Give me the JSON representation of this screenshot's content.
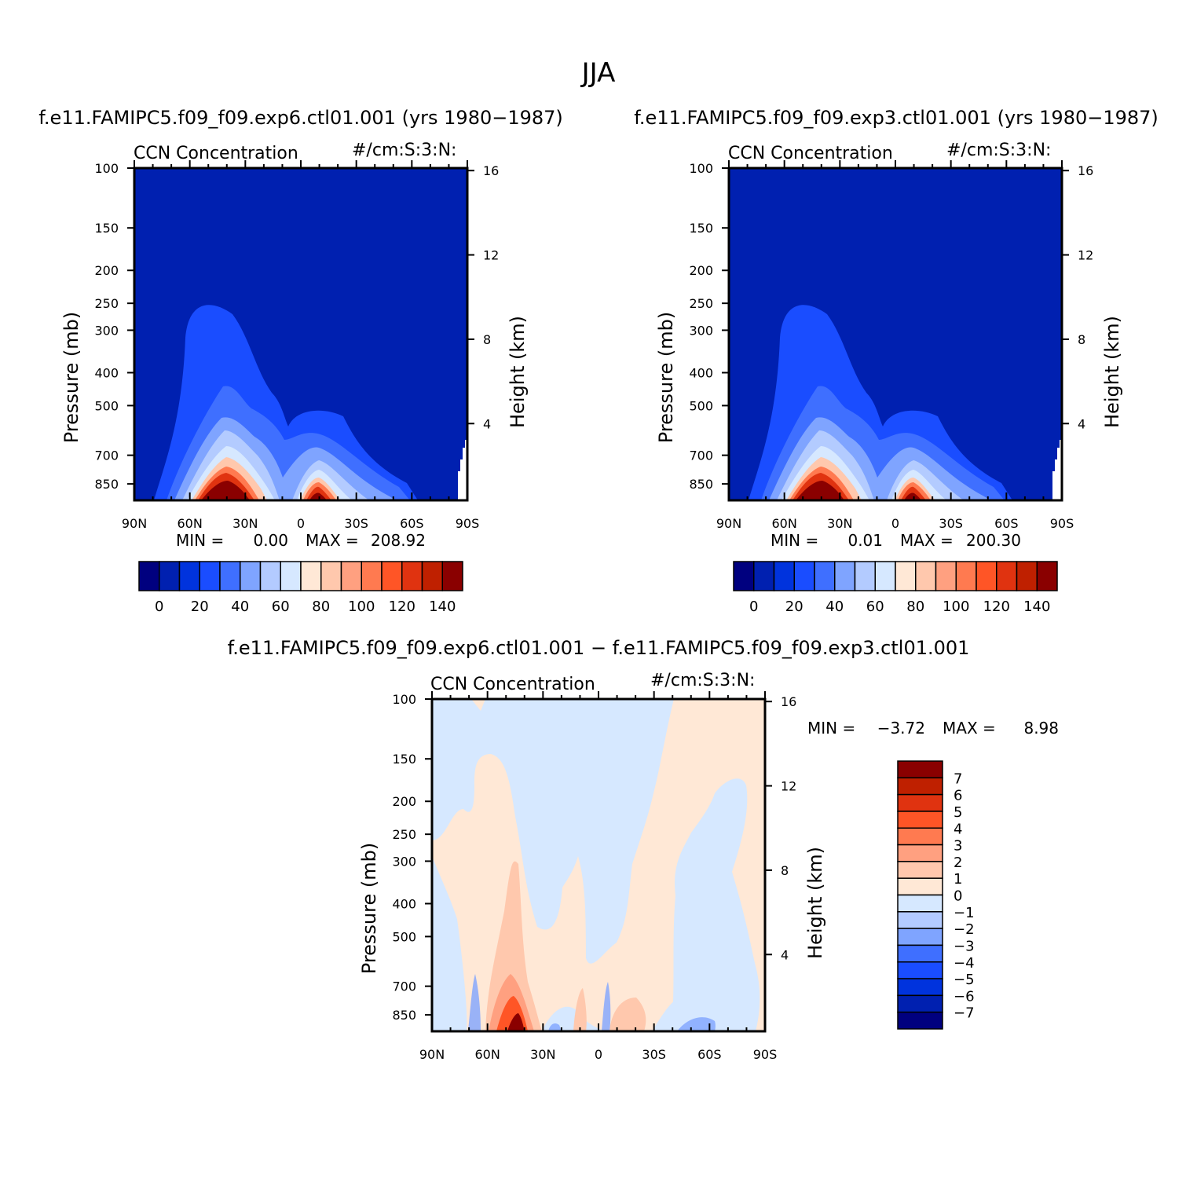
{
  "figure_title": "JJA",
  "panels": [
    {
      "id": "ctl6",
      "run_title": "f.e11.FAMIPC5.f09_f09.exp6.ctl01.001 (yrs 1980−1987)",
      "variable": "CCN Concentration",
      "units": "#/cm:S:3:N:",
      "min_label": "MIN =",
      "min_value": "0.00",
      "max_label": "MAX =",
      "max_value": "208.92"
    },
    {
      "id": "ctl3",
      "run_title": "f.e11.FAMIPC5.f09_f09.exp3.ctl01.001 (yrs 1980−1987)",
      "variable": "CCN Concentration",
      "units": "#/cm:S:3:N:",
      "min_label": "MIN =",
      "min_value": "0.01",
      "max_label": "MAX =",
      "max_value": "200.30"
    },
    {
      "id": "diff",
      "run_title": "f.e11.FAMIPC5.f09_f09.exp6.ctl01.001 − f.e11.FAMIPC5.f09_f09.exp3.ctl01.001",
      "variable": "CCN Concentration",
      "units": "#/cm:S:3:N:",
      "min_label": "MIN =",
      "min_value": "−3.72",
      "max_label": "MAX =",
      "max_value": "8.98"
    }
  ],
  "chart_data": [
    {
      "type": "heatmap",
      "panel": "ctl6",
      "title": "CCN Concentration",
      "units": "#/cm:S:3:N:",
      "xlabel": "",
      "ylabel": "Pressure (mb)",
      "y2label": "Height (km)",
      "x_ticks": [
        "90N",
        "60N",
        "30N",
        "0",
        "30S",
        "60S",
        "90S"
      ],
      "x_range": [
        90,
        -90
      ],
      "y_ticks": [
        100,
        150,
        200,
        250,
        300,
        400,
        500,
        700,
        850
      ],
      "y_range_mb": [
        100,
        950
      ],
      "y2_ticks": [
        4,
        8,
        12,
        16
      ],
      "colorbar_levels": [
        0,
        10,
        20,
        30,
        40,
        50,
        60,
        70,
        80,
        90,
        100,
        110,
        120,
        130,
        140
      ],
      "colorbar_tick_labels": [
        "0",
        "20",
        "40",
        "60",
        "80",
        "100",
        "120",
        "140"
      ],
      "min": 0.0,
      "max": 208.92
    },
    {
      "type": "heatmap",
      "panel": "ctl3",
      "title": "CCN Concentration",
      "units": "#/cm:S:3:N:",
      "xlabel": "",
      "ylabel": "Pressure (mb)",
      "y2label": "Height (km)",
      "x_ticks": [
        "90N",
        "60N",
        "30N",
        "0",
        "30S",
        "60S",
        "90S"
      ],
      "x_range": [
        90,
        -90
      ],
      "y_ticks": [
        100,
        150,
        200,
        250,
        300,
        400,
        500,
        700,
        850
      ],
      "y_range_mb": [
        100,
        950
      ],
      "y2_ticks": [
        4,
        8,
        12,
        16
      ],
      "colorbar_levels": [
        0,
        10,
        20,
        30,
        40,
        50,
        60,
        70,
        80,
        90,
        100,
        110,
        120,
        130,
        140
      ],
      "colorbar_tick_labels": [
        "0",
        "20",
        "40",
        "60",
        "80",
        "100",
        "120",
        "140"
      ],
      "min": 0.01,
      "max": 200.3
    },
    {
      "type": "heatmap",
      "panel": "diff",
      "title": "CCN Concentration",
      "units": "#/cm:S:3:N:",
      "xlabel": "",
      "ylabel": "Pressure (mb)",
      "y2label": "Height (km)",
      "x_ticks": [
        "90N",
        "60N",
        "30N",
        "0",
        "30S",
        "60S",
        "90S"
      ],
      "x_range": [
        90,
        -90
      ],
      "y_ticks": [
        100,
        150,
        200,
        250,
        300,
        400,
        500,
        700,
        850
      ],
      "y_range_mb": [
        100,
        950
      ],
      "y2_ticks": [
        4,
        8,
        12,
        16
      ],
      "colorbar_levels": [
        -7,
        -6,
        -5,
        -4,
        -3,
        -2,
        -1,
        0,
        1,
        2,
        3,
        4,
        5,
        6,
        7
      ],
      "colorbar_tick_labels": [
        "7",
        "6",
        "5",
        "4",
        "3",
        "2",
        "1",
        "0",
        "−1",
        "−2",
        "−3",
        "−4",
        "−5",
        "−6",
        "−7"
      ],
      "min": -3.72,
      "max": 8.98
    }
  ],
  "palette": [
    "#00007f",
    "#0020b0",
    "#0033dd",
    "#1a4dff",
    "#3f6fff",
    "#7fa4ff",
    "#b3cbff",
    "#d6e8ff",
    "#ffe8d6",
    "#ffc8ad",
    "#ffa080",
    "#ff7a50",
    "#ff5526",
    "#e03310",
    "#bf2000",
    "#8a0000"
  ],
  "colors": {
    "background": "#0020b0",
    "diff_background": "#ffe8d6",
    "diff_negative": "#d6e8ff"
  }
}
